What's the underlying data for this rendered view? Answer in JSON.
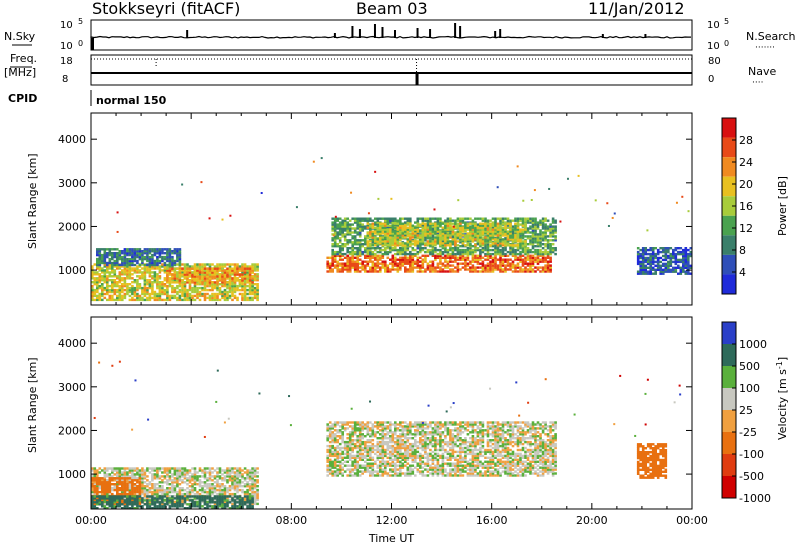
{
  "header": {
    "station": "Stokkseyri (fitACF)",
    "beam": "Beam 03",
    "date": "11/Jan/2012"
  },
  "top_panel": {
    "left_label": "N.Sky",
    "right_label": "N.Search",
    "left_ticks": [
      "10^5",
      "10^0"
    ],
    "right_ticks": [
      "10^5",
      "10^0"
    ]
  },
  "freq_panel": {
    "left_label_top": "Freq.",
    "left_label_bottom": "[MHz]",
    "left_ticks": [
      "18",
      "8"
    ],
    "right_label": "Nave",
    "right_ticks": [
      "80",
      "0"
    ]
  },
  "cpid": {
    "label": "CPID",
    "value": "normal 150"
  },
  "chart_data": [
    {
      "type": "heatmap",
      "quantity": "Power",
      "ylabel": "Slant Range [km]",
      "colorbar_label": "Power [dB]",
      "colorbar_ticks": [
        4,
        8,
        12,
        16,
        20,
        24,
        28
      ],
      "colorbar_range": [
        0,
        32
      ],
      "ylim": [
        200,
        4600
      ],
      "y_ticks": [
        1000,
        2000,
        3000,
        4000
      ],
      "xlim_hours": [
        0,
        24
      ],
      "colors": [
        "#1f2bd9",
        "#2f4fb8",
        "#3a7f6a",
        "#4aa24f",
        "#a8cc3a",
        "#e8c020",
        "#f08a20",
        "#e84a18",
        "#d81010"
      ],
      "echo_regions": [
        {
          "t0": 0.0,
          "t1": 6.6,
          "r0": 300,
          "r1": 1150,
          "power": 18
        },
        {
          "t0": 0.2,
          "t1": 3.6,
          "r0": 1100,
          "r1": 1500,
          "power": 8
        },
        {
          "t0": 3.0,
          "t1": 6.4,
          "r0": 700,
          "r1": 1050,
          "power": 22
        },
        {
          "t0": 9.4,
          "t1": 18.4,
          "r0": 950,
          "r1": 1350,
          "power": 25
        },
        {
          "t0": 9.6,
          "t1": 18.6,
          "r0": 1350,
          "r1": 2200,
          "power": 12
        },
        {
          "t0": 11.0,
          "t1": 17.4,
          "r0": 1550,
          "r1": 2050,
          "power": 17
        },
        {
          "t0": 21.8,
          "t1": 24.0,
          "r0": 900,
          "r1": 1500,
          "power": 6
        }
      ]
    },
    {
      "type": "heatmap",
      "quantity": "Velocity",
      "ylabel": "Slant Range [km]",
      "xlabel": "Time UT",
      "colorbar_label": "Velocity [m s^-1]",
      "colorbar_ticks": [
        1000,
        500,
        100,
        25,
        -25,
        -100,
        -500,
        -1000
      ],
      "ylim": [
        200,
        4600
      ],
      "y_ticks": [
        1000,
        2000,
        3000,
        4000
      ],
      "x_tick_labels": [
        "00:00",
        "04:00",
        "08:00",
        "12:00",
        "16:00",
        "20:00",
        "00:00"
      ],
      "colors": [
        "#2a3fc8",
        "#2e6a5a",
        "#5ab03c",
        "#c8c8c0",
        "#f0a040",
        "#e87010",
        "#e03c10",
        "#d00000"
      ],
      "echo_regions": [
        {
          "t0": 0.0,
          "t1": 6.6,
          "r0": 300,
          "r1": 1150,
          "velocity": 0
        },
        {
          "t0": 0.0,
          "t1": 2.0,
          "r0": 300,
          "r1": 900,
          "velocity": -300
        },
        {
          "t0": 0.0,
          "t1": 6.4,
          "r0": 200,
          "r1": 500,
          "velocity": 150
        },
        {
          "t0": 9.4,
          "t1": 18.6,
          "r0": 950,
          "r1": 2200,
          "velocity": 0
        },
        {
          "t0": 21.8,
          "t1": 23.0,
          "r0": 900,
          "r1": 1700,
          "velocity": -300
        }
      ]
    }
  ]
}
